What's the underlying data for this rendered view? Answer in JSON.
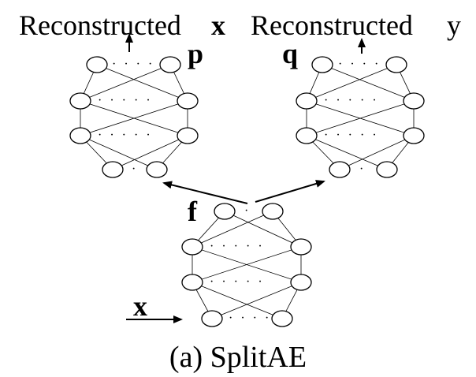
{
  "labels": {
    "reconstructed_x_word": "Reconstructed",
    "reconstructed_x_var": "x",
    "reconstructed_y_word": "Reconstructed",
    "reconstructed_y_var": "y",
    "decoder_p": "p",
    "decoder_q": "q",
    "encoder_f": "f",
    "input_x": "x",
    "caption": "(a) SplitAE"
  },
  "dots": {
    "short": "· · · ·",
    "long": "· · · · ·",
    "single": "·"
  }
}
